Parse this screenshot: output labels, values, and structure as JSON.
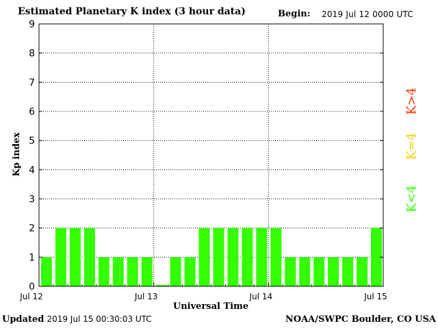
{
  "header": {
    "title": "Estimated Planetary K index (3 hour data)",
    "begin_label": "Begin:",
    "begin_value": "2019 Jul 12 0000 UTC"
  },
  "footer": {
    "updated_label": "Updated",
    "updated_value": "2019 Jul 15 00:30:03 UTC",
    "credit": "NOAA/SWPC Boulder, CO USA"
  },
  "legend": {
    "high": {
      "text": "K>4",
      "color": "#ff3300"
    },
    "mid": {
      "text": "K=4",
      "color": "#ffcc00"
    },
    "low": {
      "text": "K<4",
      "color": "#33ff00"
    }
  },
  "chart_data": {
    "type": "bar",
    "title": "Estimated Planetary K index (3 hour data)",
    "xlabel": "Universal Time",
    "ylabel": "Kp index",
    "ylim": [
      0,
      9
    ],
    "yticks": [
      0,
      1,
      2,
      3,
      4,
      5,
      6,
      7,
      8,
      9
    ],
    "x_tick_labels": [
      "Jul 12",
      "Jul 13",
      "Jul 14",
      "Jul 15"
    ],
    "grid": true,
    "bar_color": "#33ff00",
    "values": [
      1,
      2,
      2,
      2,
      1,
      1,
      1,
      1,
      0.05,
      1,
      1,
      2,
      2,
      2,
      2,
      2,
      2,
      1,
      1,
      1,
      1,
      1,
      1,
      2
    ]
  }
}
